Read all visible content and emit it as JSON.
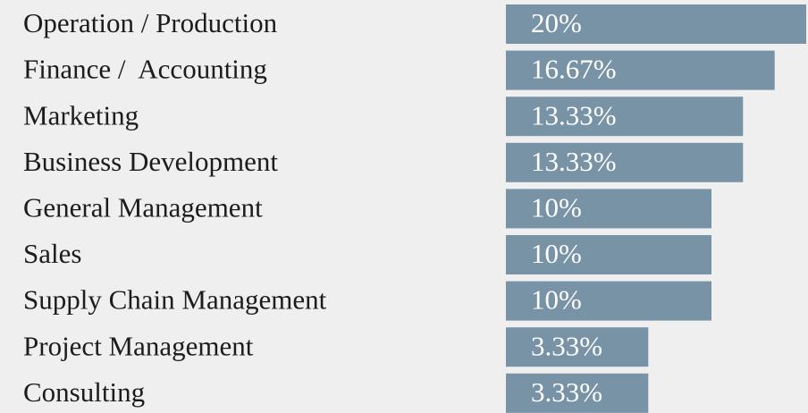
{
  "chart_data": {
    "type": "bar",
    "orientation": "horizontal",
    "categories": [
      "Operation / Production",
      "Finance /  Accounting",
      "Marketing",
      "Business Development",
      "General Management",
      "Sales",
      "Supply Chain Management",
      "Project Management",
      "Consulting"
    ],
    "values": [
      20,
      16.67,
      13.33,
      13.33,
      10,
      10,
      10,
      3.33,
      3.33
    ],
    "value_labels": [
      "20%",
      "16.67%",
      "13.33%",
      "13.33%",
      "10%",
      "10%",
      "10%",
      "3.33%",
      "3.33%"
    ],
    "color": "#7893a6"
  }
}
